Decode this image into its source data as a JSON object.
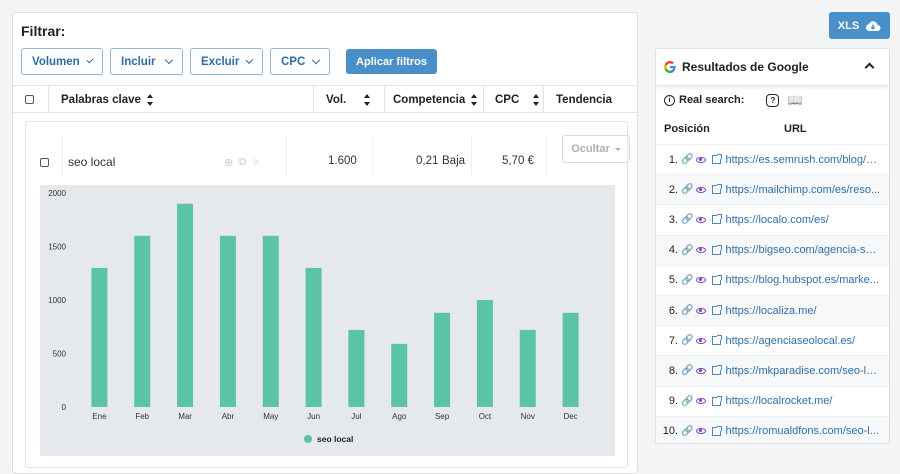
{
  "filter": {
    "title": "Filtrar:",
    "buttons": [
      "Volumen",
      "Incluir",
      "Excluir",
      "CPC"
    ],
    "apply_label": "Aplicar filtros"
  },
  "table": {
    "headers": [
      "Palabras clave",
      "Vol.",
      "Competencia",
      "CPC",
      "Tendencia"
    ],
    "row": {
      "keyword": "seo local",
      "volume": "1.600",
      "competition_value": "0,21",
      "competition_level": "Baja",
      "cpc": "5,70 €",
      "hide_label": "Ocultar"
    }
  },
  "chart_data": {
    "type": "bar",
    "categories": [
      "Ene",
      "Feb",
      "Mar",
      "Abr",
      "May",
      "Jun",
      "Jul",
      "Ago",
      "Sep",
      "Oct",
      "Nov",
      "Dec"
    ],
    "series": [
      {
        "name": "seo local",
        "values": [
          1300,
          1600,
          1900,
          1600,
          1600,
          1300,
          720,
          590,
          880,
          1000,
          720,
          880
        ]
      }
    ],
    "yticks": [
      "0",
      "500",
      "1000",
      "1500",
      "2000"
    ],
    "ylim": [
      0,
      2000
    ],
    "legend_position": "bottom",
    "color": "#5cc4a6"
  },
  "export": {
    "label": "XLS"
  },
  "google": {
    "title": "Resultados de Google",
    "real_search_label": "Real search:",
    "col_position": "Posición",
    "col_url": "URL",
    "results": [
      {
        "pos": "1.",
        "url": "https://es.semrush.com/blog/q..."
      },
      {
        "pos": "2.",
        "url": "https://mailchimp.com/es/reso..."
      },
      {
        "pos": "3.",
        "url": "https://localo.com/es/"
      },
      {
        "pos": "4.",
        "url": "https://bigseo.com/agencia-se..."
      },
      {
        "pos": "5.",
        "url": "https://blog.hubspot.es/marke..."
      },
      {
        "pos": "6.",
        "url": "https://localiza.me/"
      },
      {
        "pos": "7.",
        "url": "https://agenciaseolocal.es/"
      },
      {
        "pos": "8.",
        "url": "https://mkparadise.com/seo-lo..."
      },
      {
        "pos": "9.",
        "url": "https://localrocket.me/"
      },
      {
        "pos": "10.",
        "url": "https://romualdfons.com/seo-l..."
      }
    ]
  }
}
